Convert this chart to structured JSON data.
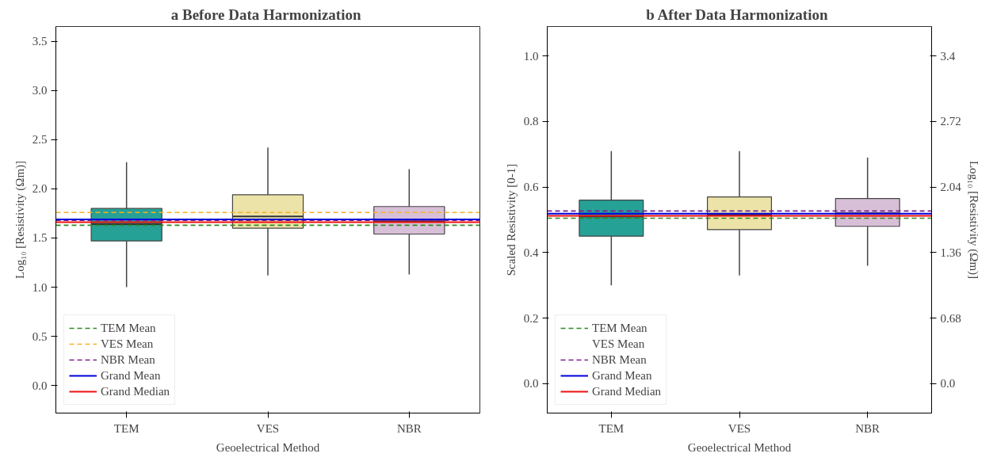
{
  "chart_data": [
    {
      "type": "box",
      "title": "a  Before Data Harmonization",
      "xlabel": "Geoelectrical Method",
      "ylabel": "Log₁₀ [Resistivity (Ωm)]",
      "categories": [
        "TEM",
        "VES",
        "NBR"
      ],
      "colors": [
        "#26a196",
        "#ece3a8",
        "#d8bfd8"
      ],
      "boxes": [
        {
          "low": 1.0,
          "q1": 1.47,
          "median": 1.64,
          "q3": 1.8,
          "high": 2.27
        },
        {
          "low": 1.12,
          "q1": 1.6,
          "median": 1.72,
          "q3": 1.94,
          "high": 2.42
        },
        {
          "low": 1.13,
          "q1": 1.54,
          "median": 1.67,
          "q3": 1.82,
          "high": 2.2
        }
      ],
      "ylim": [
        -0.28,
        3.65
      ],
      "yticks": [
        {
          "value": 0,
          "label": "0.0"
        },
        0.5,
        {
          "value": 1,
          "label": "1.0"
        },
        1.5,
        {
          "value": 2,
          "label": "2.0"
        },
        2.5,
        {
          "value": 3,
          "label": "3.0"
        },
        3.5
      ],
      "ref_lines": [
        {
          "axis": "y",
          "value": 1.63,
          "label": "TEM Mean",
          "color": "#2e8b22",
          "line_style": "dashed"
        },
        {
          "axis": "y",
          "value": 1.76,
          "label": "VES Mean",
          "color": "#f5b027",
          "line_style": "dashed"
        },
        {
          "axis": "y",
          "value": 1.68,
          "label": "NBR Mean",
          "color": "#7d1f8f",
          "line_style": "dashed"
        },
        {
          "axis": "y",
          "value": 1.69,
          "label": "Grand Mean",
          "color": "#0000dd",
          "line_style": "solid"
        },
        {
          "axis": "y",
          "value": 1.66,
          "label": "Grand Median",
          "color": "#ee1111",
          "line_style": "solid"
        }
      ],
      "legend": "bottom left",
      "grid": false
    },
    {
      "type": "box",
      "title": "b  After Data Harmonization",
      "xlabel": "Geoelectrical Method",
      "ylabel": "Scaled Resistivity [0-1]",
      "y2label": "Log₁₀ [Resistivity (Ωm)]",
      "categories": [
        "TEM",
        "VES",
        "NBR"
      ],
      "colors": [
        "#26a196",
        "#ece3a8",
        "#d8bfd8"
      ],
      "boxes": [
        {
          "low": 0.3,
          "q1": 0.45,
          "median": 0.51,
          "q3": 0.56,
          "high": 0.71
        },
        {
          "low": 0.33,
          "q1": 0.47,
          "median": 0.515,
          "q3": 0.57,
          "high": 0.71
        },
        {
          "low": 0.36,
          "q1": 0.48,
          "median": 0.52,
          "q3": 0.565,
          "high": 0.69
        }
      ],
      "ylim": [
        -0.09,
        1.09
      ],
      "yticks": [
        {
          "value": 0,
          "label": "0.0"
        },
        0.2,
        0.4,
        0.6,
        0.8,
        {
          "value": 1,
          "label": "1.0"
        }
      ],
      "y2lim": [
        -0.306,
        3.706
      ],
      "y2ticks": [
        {
          "value": 0,
          "label": "0.0"
        },
        0.68,
        1.36,
        2.04,
        2.72,
        3.4
      ],
      "ref_lines": [
        {
          "axis": "y",
          "value": 0.505,
          "label": "TEM Mean",
          "color": "#2e8b22",
          "line_style": "dashed"
        },
        {
          "axis": "y",
          "value": null,
          "label": "VES Mean",
          "color": "#f5b027",
          "line_style": "dashed"
        },
        {
          "axis": "y",
          "value": 0.527,
          "label": "NBR Mean",
          "color": "#7d1f8f",
          "line_style": "dashed"
        },
        {
          "axis": "y",
          "value": 0.519,
          "label": "Grand Mean",
          "color": "#0000dd",
          "line_style": "solid"
        },
        {
          "axis": "y",
          "value": 0.512,
          "label": "Grand Median",
          "color": "#ee1111",
          "line_style": "solid"
        }
      ],
      "legend": "bottom left",
      "grid": false
    }
  ]
}
